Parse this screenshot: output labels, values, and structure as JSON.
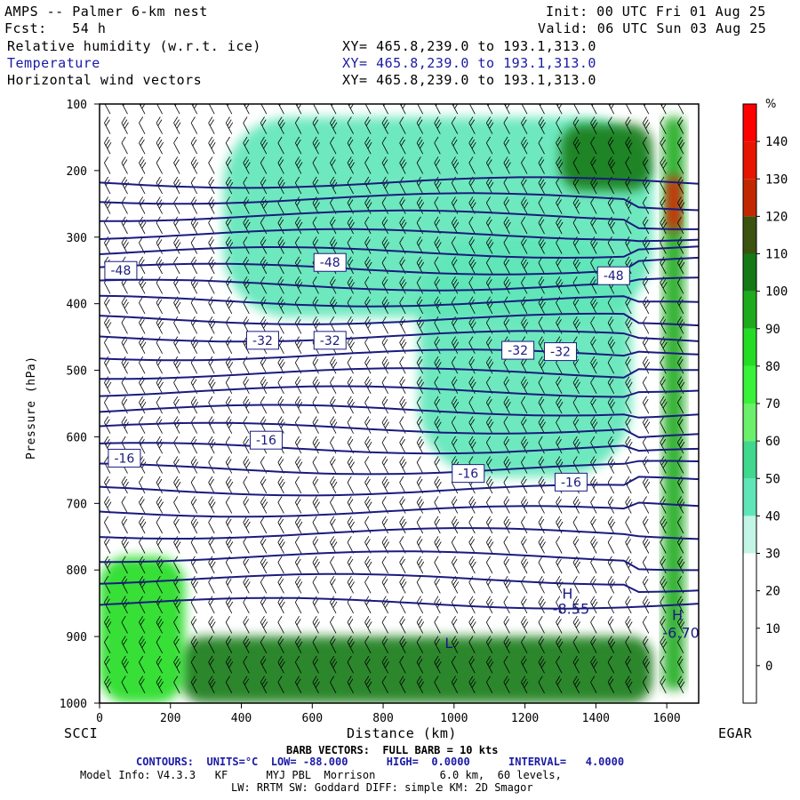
{
  "header": {
    "title": "AMPS -- Palmer 6-km nest",
    "fcst": "Fcst:   54 h",
    "init": "Init: 00 UTC Fri 01 Aug 25",
    "valid": "Valid: 06 UTC Sun 03 Aug 25",
    "fields": [
      {
        "name": "Relative humidity (w.r.t. ice)",
        "xy": "XY= 465.8,239.0 to 193.1,313.0"
      },
      {
        "name": "Temperature",
        "xy": "XY= 465.8,239.0 to 193.1,313.0"
      },
      {
        "name": "Horizontal wind vectors",
        "xy": "XY= 465.8,239.0 to 193.1,313.0"
      }
    ]
  },
  "axes": {
    "xlabel": "Distance (km)",
    "ylabel": "Pressure (hPa)",
    "left_station": "SCCI",
    "right_station": "EGAR"
  },
  "footer": {
    "barb": "BARB VECTORS:  FULL BARB = 10 kts",
    "contours": "CONTOURS:  UNITS=°C  LOW= -88.000      HIGH=  0.0000      INTERVAL=   4.0000",
    "model1": "Model Info: V4.3.3   KF      MYJ PBL  Morrison          6.0 km,  60 levels,",
    "model2": "LW: RRTM SW: Goddard DIFF: simple KM: 2D Smagor"
  },
  "chart_data": {
    "type": "heatmap",
    "x_range": [
      0,
      1690
    ],
    "y_range": [
      1000,
      100
    ],
    "y_scale": "linear",
    "x_ticks": [
      0,
      200,
      400,
      600,
      800,
      1000,
      1200,
      1400,
      1600
    ],
    "y_ticks": [
      100,
      200,
      300,
      400,
      500,
      600,
      700,
      800,
      900,
      1000
    ],
    "colorbar": {
      "unit": "%",
      "ticks": [
        0,
        10,
        20,
        30,
        40,
        50,
        60,
        70,
        80,
        90,
        100,
        110,
        120,
        130,
        140
      ],
      "bands": [
        {
          "from": -10,
          "to": 30,
          "color": "#ffffff"
        },
        {
          "from": 30,
          "to": 40,
          "color": "#c2f5e6"
        },
        {
          "from": 40,
          "to": 50,
          "color": "#5ee6b8"
        },
        {
          "from": 50,
          "to": 60,
          "color": "#3fd88e"
        },
        {
          "from": 60,
          "to": 70,
          "color": "#6cf06c"
        },
        {
          "from": 70,
          "to": 80,
          "color": "#39f239"
        },
        {
          "from": 80,
          "to": 90,
          "color": "#23dc23"
        },
        {
          "from": 90,
          "to": 100,
          "color": "#1daa1d"
        },
        {
          "from": 100,
          "to": 110,
          "color": "#157a15"
        },
        {
          "from": 110,
          "to": 120,
          "color": "#3c5210"
        },
        {
          "from": 120,
          "to": 130,
          "color": "#c22800"
        },
        {
          "from": 130,
          "to": 140,
          "color": "#e61400"
        },
        {
          "from": 140,
          "to": 150,
          "color": "#ff0000"
        }
      ]
    },
    "rh_regions": [
      {
        "name": "upper-moist-layer",
        "x": [
          350,
          1560
        ],
        "p": [
          120,
          420
        ],
        "rh": 45
      },
      {
        "name": "mid-plume",
        "x": [
          900,
          1500
        ],
        "p": [
          300,
          660
        ],
        "rh": 42
      },
      {
        "name": "jet-core-moisture",
        "x": [
          1300,
          1560
        ],
        "p": [
          130,
          230
        ],
        "rh": 100
      },
      {
        "name": "right-edge-column",
        "x": [
          1590,
          1650
        ],
        "p": [
          120,
          980
        ],
        "rh": 95
      },
      {
        "name": "red-core",
        "x": [
          1600,
          1640
        ],
        "p": [
          210,
          290
        ],
        "rh": 130
      },
      {
        "name": "boundary-layer",
        "x": [
          230,
          1560
        ],
        "p": [
          900,
          1000
        ],
        "rh": 105
      },
      {
        "name": "left-low-moist",
        "x": [
          0,
          240
        ],
        "p": [
          780,
          1000
        ],
        "rh": 85
      }
    ],
    "temperature_labels": [
      {
        "text": "-48",
        "x": 60,
        "p": 350
      },
      {
        "text": "-48",
        "x": 650,
        "p": 338
      },
      {
        "text": "-48",
        "x": 1450,
        "p": 358
      },
      {
        "text": "-32",
        "x": 460,
        "p": 455
      },
      {
        "text": "-32",
        "x": 650,
        "p": 455
      },
      {
        "text": "-32",
        "x": 1180,
        "p": 470
      },
      {
        "text": "-32",
        "x": 1300,
        "p": 472
      },
      {
        "text": "-16",
        "x": 70,
        "p": 632
      },
      {
        "text": "-16",
        "x": 470,
        "p": 605
      },
      {
        "text": "-16",
        "x": 1040,
        "p": 655
      },
      {
        "text": "-16",
        "x": 1330,
        "p": 668
      }
    ],
    "isotherms_pressure_levels": [
      218,
      242,
      268,
      296,
      323,
      348,
      372,
      396,
      423,
      449,
      477,
      505,
      532,
      560,
      587,
      617,
      648,
      680,
      712,
      745,
      780,
      814,
      850
    ],
    "annotations": [
      {
        "text": "H",
        "x": 1320,
        "p": 843
      },
      {
        "text": "-8.55",
        "x": 1330,
        "p": 866
      },
      {
        "text": "H",
        "x": 1630,
        "p": 875
      },
      {
        "text": "-6.70",
        "x": 1640,
        "p": 902
      },
      {
        "text": "L",
        "x": 985,
        "p": 917
      }
    ]
  }
}
